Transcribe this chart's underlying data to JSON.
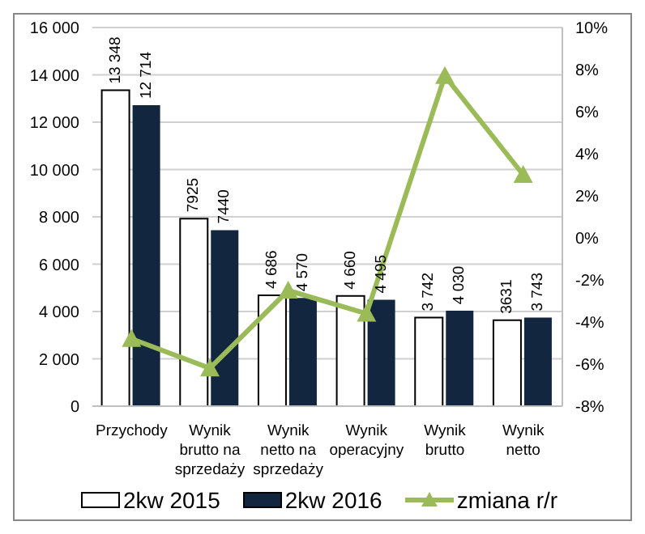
{
  "chart_data": {
    "type": "bar",
    "categories": [
      "Przychody",
      "Wynik brutto na sprzedaży",
      "Wynik netto na sprzedaży",
      "Wynik operacyjny",
      "Wynik brutto",
      "Wynik netto"
    ],
    "series": [
      {
        "name": "2kw 2015",
        "color": "#ffffff",
        "values": [
          13348,
          7925,
          4686,
          4660,
          3742,
          3631
        ],
        "value_labels": [
          "13 348",
          "7925",
          "4 686",
          "4 660",
          "3 742",
          "3631"
        ]
      },
      {
        "name": "2kw 2016",
        "color": "#12263f",
        "values": [
          12714,
          7440,
          4570,
          4495,
          4030,
          3743
        ],
        "value_labels": [
          "12 714",
          "7440",
          "4 570",
          "4 495",
          "4 030",
          "3 743"
        ]
      },
      {
        "name": "zmiana r/r",
        "type": "line",
        "axis": "y2",
        "color": "#9bbb59",
        "values": [
          -4.8,
          -6.2,
          -2.5,
          -3.6,
          7.7,
          3.0
        ]
      }
    ],
    "ylim": [
      0,
      16000
    ],
    "yticks": [
      0,
      {
        "value": 2000,
        "label": "2 000"
      },
      {
        "value": 4000,
        "label": "4 000"
      },
      {
        "value": 6000,
        "label": "6 000"
      },
      {
        "value": 8000,
        "label": "8 000"
      },
      {
        "value": 10000,
        "label": "10 000"
      },
      {
        "value": 12000,
        "label": "12 000"
      },
      {
        "value": 14000,
        "label": "14 000"
      },
      {
        "value": 16000,
        "label": "16 000"
      }
    ],
    "y2lim": [
      -8,
      10
    ],
    "y2ticks": [
      {
        "value": -8,
        "label": "-8%"
      },
      {
        "value": -6,
        "label": "-6%"
      },
      {
        "value": -4,
        "label": "-4%"
      },
      {
        "value": -2,
        "label": "-2%"
      },
      {
        "value": 0,
        "label": "0%"
      },
      {
        "value": 2,
        "label": "2%"
      },
      {
        "value": 4,
        "label": "4%"
      },
      {
        "value": 6,
        "label": "6%"
      },
      {
        "value": 8,
        "label": "8%"
      },
      {
        "value": 10,
        "label": "10%"
      }
    ],
    "grid": "y",
    "legend": "bottom",
    "marker": "triangle"
  }
}
